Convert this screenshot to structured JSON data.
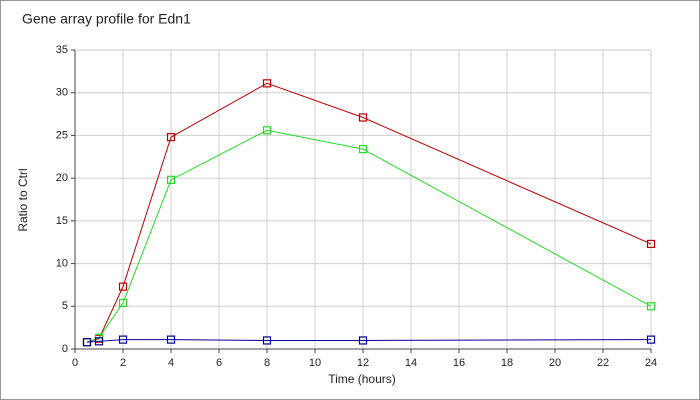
{
  "chart_data": {
    "type": "line",
    "title": "Gene array profile for Edn1",
    "x_label": "Time (hours)",
    "y_label": "Ratio to Ctrl",
    "x": [
      0.5,
      1,
      2,
      4,
      8,
      12,
      24
    ],
    "series": [
      {
        "color": "#c00000",
        "values": [
          0.8,
          1.2,
          7.3,
          24.8,
          31.1,
          27.1,
          12.3
        ]
      },
      {
        "color": "#22dd22",
        "values": [
          0.8,
          1.3,
          5.4,
          19.8,
          25.6,
          23.4,
          5.0
        ]
      },
      {
        "color": "#000099",
        "values": [
          0.8,
          0.9,
          1.1,
          1.1,
          1.0,
          1.0,
          1.1
        ]
      }
    ],
    "xlim": [
      0,
      24
    ],
    "xticks": [
      0,
      2,
      4,
      6,
      8,
      10,
      12,
      14,
      16,
      18,
      20,
      22,
      24
    ],
    "ylim": [
      0,
      35
    ],
    "yticks": [
      0,
      5,
      10,
      15,
      20,
      25,
      30,
      35
    ],
    "grid": true,
    "marker": "square"
  }
}
